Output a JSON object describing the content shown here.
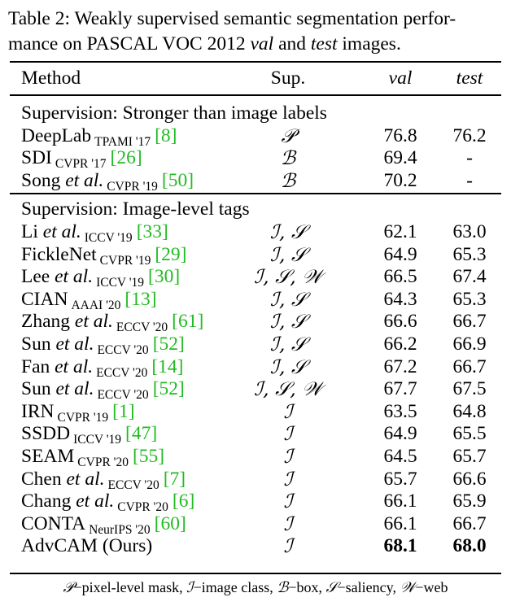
{
  "caption": {
    "part1": "Table 2: Weakly supervised semantic segmentation perfor-",
    "part2a": "mance on PASCAL VOC 2012 ",
    "val_word": "val",
    "and_word": " and ",
    "test_word": "test",
    "part2b": " images."
  },
  "header": {
    "method": "Method",
    "sup": "Sup.",
    "val": "val",
    "test": "test"
  },
  "sections": [
    {
      "title": "Supervision: Stronger than image labels",
      "rows": [
        {
          "name": "DeepLab",
          "italic": "",
          "venue": "TPAMI '17",
          "ref": "[8]",
          "sup": "𝒫",
          "val": "76.8",
          "test": "76.2"
        },
        {
          "name": "SDI",
          "italic": "",
          "venue": "CVPR '17",
          "ref": "[26]",
          "sup": "ℬ",
          "val": "69.4",
          "test": "-"
        },
        {
          "name": "Song",
          "italic": " et al.",
          "venue": "CVPR '19",
          "ref": "[50]",
          "sup": "ℬ",
          "val": "70.2",
          "test": "-"
        }
      ]
    },
    {
      "title": "Supervision: Image-level tags",
      "rows": [
        {
          "name": "Li",
          "italic": " et al.",
          "venue": "ICCV '19",
          "ref": "[33]",
          "sup": "ℐ, 𝒮",
          "val": "62.1",
          "test": "63.0"
        },
        {
          "name": "FickleNet",
          "italic": "",
          "venue": "CVPR '19",
          "ref": "[29]",
          "sup": "ℐ, 𝒮",
          "val": "64.9",
          "test": "65.3"
        },
        {
          "name": "Lee",
          "italic": " et al.",
          "venue": "ICCV '19",
          "ref": "[30]",
          "sup": "ℐ, 𝒮, 𝒲",
          "val": "66.5",
          "test": "67.4"
        },
        {
          "name": "CIAN",
          "italic": "",
          "venue": "AAAI '20",
          "ref": "[13]",
          "sup": "ℐ, 𝒮",
          "val": "64.3",
          "test": "65.3"
        },
        {
          "name": "Zhang",
          "italic": " et al.",
          "venue": "ECCV '20",
          "ref": "[61]",
          "sup": "ℐ, 𝒮",
          "val": "66.6",
          "test": "66.7"
        },
        {
          "name": "Sun",
          "italic": " et al.",
          "venue": "ECCV '20",
          "ref": "[52]",
          "sup": "ℐ, 𝒮",
          "val": "66.2",
          "test": "66.9"
        },
        {
          "name": "Fan",
          "italic": " et al.",
          "venue": "ECCV '20",
          "ref": "[14]",
          "sup": "ℐ, 𝒮",
          "val": "67.2",
          "test": "66.7"
        },
        {
          "name": "Sun",
          "italic": " et al.",
          "venue": "ECCV '20",
          "ref": "[52]",
          "sup": "ℐ, 𝒮, 𝒲",
          "val": "67.7",
          "test": "67.5"
        },
        {
          "name": "IRN",
          "italic": "",
          "venue": "CVPR '19",
          "ref": "[1]",
          "sup": "ℐ",
          "val": "63.5",
          "test": "64.8"
        },
        {
          "name": "SSDD",
          "italic": "",
          "venue": "ICCV '19",
          "ref": "[47]",
          "sup": "ℐ",
          "val": "64.9",
          "test": "65.5"
        },
        {
          "name": "SEAM",
          "italic": "",
          "venue": "CVPR '20",
          "ref": "[55]",
          "sup": "ℐ",
          "val": "64.5",
          "test": "65.7"
        },
        {
          "name": "Chen",
          "italic": " et al.",
          "venue": "ECCV '20",
          "ref": "[7]",
          "sup": "ℐ",
          "val": "65.7",
          "test": "66.6"
        },
        {
          "name": "Chang",
          "italic": " et al.",
          "venue": "CVPR '20",
          "ref": "[6]",
          "sup": "ℐ",
          "val": "66.1",
          "test": "65.9"
        },
        {
          "name": "CONTA",
          "italic": "",
          "venue": "NeurIPS '20",
          "ref": "[60]",
          "sup": "ℐ",
          "val": "66.1",
          "test": "66.7"
        },
        {
          "name": "AdvCAM (Ours)",
          "italic": "",
          "venue": "",
          "ref": "",
          "sup": "ℐ",
          "val": "68.1",
          "test": "68.0",
          "bold": true
        }
      ]
    }
  ],
  "footnote": {
    "p_sym": "𝒫",
    "p_text": "−pixel-level mask, ",
    "i_sym": "ℐ",
    "i_text": "−image class, ",
    "b_sym": "ℬ",
    "b_text": "−box, ",
    "s_sym": "𝒮",
    "s_text": "−saliency, ",
    "w_sym": "𝒲",
    "w_text": "−web"
  },
  "colors": {
    "ref": "#22bb22",
    "text": "#000000"
  }
}
